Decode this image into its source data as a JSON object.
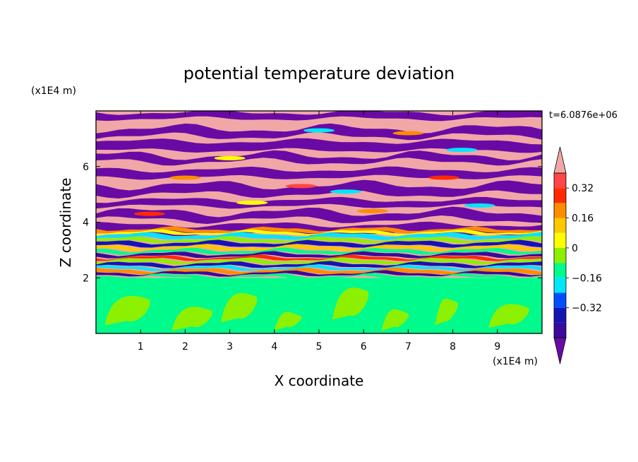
{
  "chart_data": {
    "type": "heatmap",
    "title": "potential temperature deviation",
    "xlabel": "X coordinate",
    "ylabel": "Z coordinate",
    "x_unit": "(x1E4 m)",
    "y_unit": "(x1E4 m)",
    "time_label": "t=6.0876e+06",
    "xlim": [
      0,
      10
    ],
    "ylim": [
      0,
      8
    ],
    "x_ticks": [
      1,
      2,
      3,
      4,
      5,
      6,
      7,
      8,
      9
    ],
    "y_ticks": [
      2,
      4,
      6
    ],
    "grid": false,
    "colorbar": {
      "levels": [
        -0.48,
        -0.4,
        -0.32,
        -0.24,
        -0.16,
        -0.08,
        0,
        0.08,
        0.16,
        0.24,
        0.32,
        0.4,
        0.48
      ],
      "labeled_ticks": [
        "0.32",
        "0.16",
        "0",
        "−0.16",
        "−0.32"
      ],
      "labeled_values": [
        0.32,
        0.16,
        0,
        -0.16,
        -0.32
      ],
      "colors_low_to_high": [
        "#6a0aa5",
        "#3a0a9a",
        "#1414b4",
        "#0050ff",
        "#00e6ff",
        "#00fa8c",
        "#8cf000",
        "#ffff00",
        "#ffc800",
        "#ff8c00",
        "#ff2a00",
        "#ff4545",
        "#f2a7a7"
      ],
      "extend": "both"
    },
    "regions": {
      "lower_layer_top_z": 2.0,
      "lower_layer_colors": [
        "#00fa8c",
        "#8cf000"
      ],
      "upper_layer_colors": [
        "#6a0aa5",
        "#f2a7a7"
      ]
    }
  }
}
